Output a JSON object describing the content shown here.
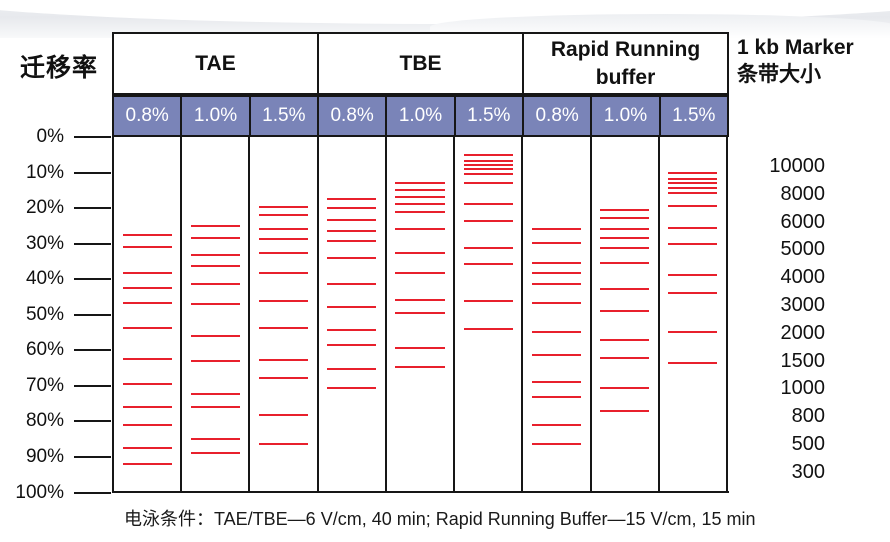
{
  "page": {
    "figure_kind": "agarose-gel-migration-figure"
  },
  "colors": {
    "band_red": "#e8202c",
    "header_fill_blue": "#7a84b8",
    "header_text_white": "#ffffff",
    "line_black": "#161616"
  },
  "chart_data": {
    "type": "scatter",
    "ylabel": "迁移率",
    "ylim": [
      0,
      100
    ],
    "y_tick_labels": [
      "0%",
      "10%",
      "20%",
      "30%",
      "40%",
      "50%",
      "60%",
      "70%",
      "80%",
      "90%",
      "100%"
    ],
    "grid": "lane-borders-only",
    "x_groups": [
      {
        "label": "TAE",
        "lanes": [
          "0.8%",
          "1.0%",
          "1.5%"
        ]
      },
      {
        "label": "TBE",
        "lanes": [
          "0.8%",
          "1.0%",
          "1.5%"
        ]
      },
      {
        "label": "Rapid Running buffer",
        "lanes": [
          "0.8%",
          "1.0%",
          "1.5%"
        ]
      }
    ],
    "marker_panel_title_line1": "1 kb Marker",
    "marker_panel_title_line2": "条带大小",
    "marker_sizes_bp": [
      10000,
      8000,
      6000,
      5000,
      4000,
      3000,
      2000,
      1500,
      1000,
      800,
      500,
      300
    ],
    "series": [
      {
        "group": "TAE",
        "gel_percent": "0.8%",
        "migration_percent": [
          27.6,
          31.0,
          38.2,
          42.4,
          46.8,
          53.7,
          62.4,
          69.5,
          75.9,
          80.9,
          87.6,
          92.1
        ]
      },
      {
        "group": "TAE",
        "gel_percent": "1.0%",
        "migration_percent": [
          25.0,
          28.3,
          33.2,
          36.3,
          41.3,
          47.0,
          56.0,
          63.0,
          72.4,
          75.9,
          85.0,
          88.8
        ]
      },
      {
        "group": "TAE",
        "gel_percent": "1.5%",
        "migration_percent": [
          19.8,
          21.9,
          25.9,
          28.7,
          32.5,
          38.2,
          46.0,
          53.8,
          62.7,
          67.9,
          78.2,
          86.4
        ]
      },
      {
        "group": "TBE",
        "gel_percent": "0.8%",
        "migration_percent": [
          17.4,
          20.0,
          23.3,
          26.4,
          29.1,
          33.9,
          41.3,
          47.7,
          54.2,
          58.5,
          65.2,
          70.5
        ]
      },
      {
        "group": "TBE",
        "gel_percent": "1.0%",
        "migration_percent": [
          12.9,
          14.9,
          17.0,
          18.9,
          21.0,
          26.0,
          32.7,
          38.3,
          45.7,
          49.6,
          59.4,
          64.8
        ]
      },
      {
        "group": "TBE",
        "gel_percent": "1.5%",
        "migration_percent": [
          5.1,
          6.6,
          7.8,
          9.0,
          10.3,
          12.9,
          18.8,
          23.5,
          31.3,
          35.8,
          46.1,
          54.1
        ]
      },
      {
        "group": "Rapid Running buffer",
        "gel_percent": "0.8%",
        "migration_percent": [
          26.0,
          29.9,
          35.4,
          38.3,
          41.4,
          46.8,
          54.8,
          61.3,
          68.8,
          73.0,
          81.0,
          86.4
        ]
      },
      {
        "group": "Rapid Running buffer",
        "gel_percent": "1.0%",
        "migration_percent": [
          20.5,
          22.7,
          26.0,
          28.3,
          31.1,
          35.4,
          42.8,
          48.9,
          57.1,
          62.1,
          70.7,
          77.1
        ]
      },
      {
        "group": "Rapid Running buffer",
        "gel_percent": "1.5%",
        "migration_percent": [
          10.2,
          11.9,
          13.0,
          14.4,
          15.8,
          19.4,
          25.5,
          30.2,
          38.8,
          44.0,
          54.8,
          63.5
        ]
      }
    ],
    "caption": "电泳条件：TAE/TBE—6 V/cm, 40 min; Rapid Running Buffer—15 V/cm, 15 min"
  }
}
